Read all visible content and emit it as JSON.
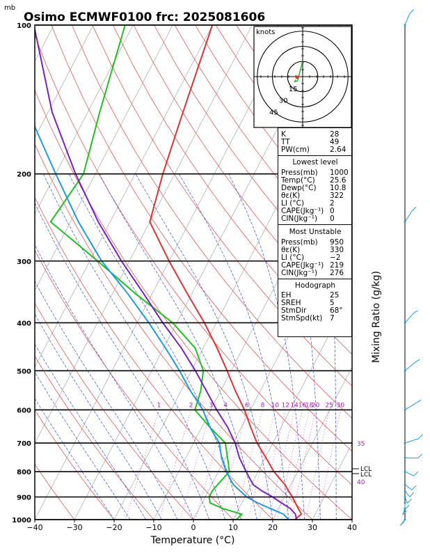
{
  "header": {
    "unit": "mb",
    "title": "Osimo ECMWF0100 frc: 2025081606"
  },
  "axes": {
    "xlabel": "Temperature (°C)",
    "ylabel_right": "Mixing Ratio (g/kg)",
    "x_ticks": [
      "−40",
      "−30",
      "−20",
      "−10",
      "0",
      "10",
      "20",
      "30",
      "40"
    ],
    "y_ticks": [
      "100",
      "200",
      "300",
      "400",
      "500",
      "600",
      "700",
      "800",
      "900",
      "1000"
    ],
    "lcl_labels": [
      "LCL",
      "LCL"
    ]
  },
  "mixing_ratio_labels": [
    "1",
    "2",
    "3",
    "4",
    "6",
    "8",
    "10",
    "12",
    "14",
    "16",
    "18",
    "20",
    "25",
    "30"
  ],
  "adiabat_labels": [
    "35",
    "40"
  ],
  "hodograph": {
    "unit": "knots",
    "rings": [
      "15",
      "30",
      "45"
    ]
  },
  "indices": {
    "general": [
      {
        "label": "K",
        "value": "28"
      },
      {
        "label": "TT",
        "value": "49"
      },
      {
        "label": "PW(cm)",
        "value": "2.64"
      }
    ],
    "lowest_level": {
      "title": "Lowest level",
      "rows": [
        {
          "label": "Press(mb)",
          "value": "1000"
        },
        {
          "label": "Temp(°C)",
          "value": "25.6"
        },
        {
          "label": "Dewp(°C)",
          "value": "10.8"
        },
        {
          "label": "θε(K)",
          "value": "322"
        },
        {
          "label": "LI (°C)",
          "value": "2"
        },
        {
          "label": "CAPE(Jkg⁻¹)",
          "value": "0"
        },
        {
          "label": "CIN(Jkg⁻¹)",
          "value": "0"
        }
      ]
    },
    "most_unstable": {
      "title": "Most Unstable",
      "rows": [
        {
          "label": "Press(mb)",
          "value": "950"
        },
        {
          "label": "θε(K)",
          "value": "330"
        },
        {
          "label": "LI (°C)",
          "value": "−2"
        },
        {
          "label": "CAPE(Jkg⁻¹)",
          "value": "219"
        },
        {
          "label": "CIN(Jkg⁻¹)",
          "value": "276"
        }
      ]
    },
    "hodograph_box": {
      "title": "Hodograph",
      "rows": [
        {
          "label": "EH",
          "value": "25"
        },
        {
          "label": "SREH",
          "value": "5"
        },
        {
          "label": "StmDir",
          "value": "68°"
        },
        {
          "label": "StmSpd(kt)",
          "value": "7"
        }
      ]
    }
  },
  "chart_data": {
    "type": "line",
    "xlim": [
      -40,
      40
    ],
    "ylim": [
      1000,
      100
    ],
    "yscale": "log",
    "isobars": [
      100,
      200,
      300,
      400,
      500,
      600,
      700,
      800,
      900,
      1000
    ],
    "series": [
      {
        "color": "#e03030",
        "p": [
          1000,
          975,
          950,
          925,
          900,
          875,
          850,
          800,
          750,
          700,
          650,
          600,
          550,
          500,
          450,
          400,
          350,
          300,
          250,
          200,
          150,
          100
        ],
        "t": [
          25.6,
          26.5,
          25.0,
          23.5,
          22.0,
          20.2,
          18.5,
          14.0,
          10.2,
          6.0,
          2.3,
          -1.5,
          -6.2,
          -11.0,
          -16.5,
          -23.0,
          -31.0,
          -40.0,
          -50.0,
          -53.0,
          -56.0,
          -60.0
        ]
      },
      {
        "color": "#20c020",
        "p": [
          1000,
          975,
          950,
          925,
          900,
          875,
          850,
          800,
          750,
          700,
          650,
          600,
          550,
          500,
          450,
          400,
          350,
          300,
          250,
          200,
          150,
          100
        ],
        "t": [
          10.8,
          11.5,
          6.0,
          2.0,
          1.0,
          1.0,
          1.5,
          2.8,
          0.5,
          -2.0,
          -8.0,
          -14.0,
          -15.0,
          -17.0,
          -22.0,
          -31.0,
          -44.0,
          -58.0,
          -75.0,
          -73.0,
          -77.0,
          -82.0
        ]
      },
      {
        "color": "#1e9ae0",
        "p": [
          1000,
          975,
          950,
          925,
          900,
          875,
          850,
          800,
          750,
          700,
          650,
          600,
          550,
          500,
          450,
          400,
          350,
          300,
          250,
          200,
          150,
          100
        ],
        "t": [
          24.0,
          22.0,
          18.0,
          14.0,
          10.5,
          8.0,
          5.5,
          2.0,
          -1.0,
          -3.5,
          -8.0,
          -12.0,
          -17.5,
          -23.0,
          -29.5,
          -37.0,
          -46.0,
          -57.0,
          -68.0,
          -80.0,
          -95.0,
          -110.0
        ]
      },
      {
        "color": "#7a1fc0",
        "p": [
          1000,
          975,
          950,
          925,
          900,
          875,
          850,
          800,
          750,
          700,
          650,
          600,
          550,
          500,
          450,
          400,
          350,
          300,
          250,
          200,
          150,
          100
        ],
        "t": [
          26.0,
          25.0,
          23.0,
          20.0,
          17.0,
          13.5,
          10.5,
          7.0,
          3.5,
          0.5,
          -3.5,
          -8.5,
          -13.5,
          -19.0,
          -25.5,
          -33.5,
          -42.0,
          -52.0,
          -63.0,
          -75.0,
          -89.0,
          -105.0
        ]
      }
    ],
    "hodograph_points": [
      [
        -7,
        3
      ],
      [
        -8,
        5
      ],
      [
        -5,
        4
      ],
      [
        -2,
        -8
      ],
      [
        0,
        -15
      ]
    ],
    "wind_barbs": [
      {
        "p": 1000,
        "dir": 200,
        "spd": 10
      },
      {
        "p": 950,
        "dir": 190,
        "spd": 10
      },
      {
        "p": 925,
        "dir": 180,
        "spd": 8
      },
      {
        "p": 900,
        "dir": 170,
        "spd": 8
      },
      {
        "p": 875,
        "dir": 160,
        "spd": 6
      },
      {
        "p": 850,
        "dir": 150,
        "spd": 8
      },
      {
        "p": 800,
        "dir": 140,
        "spd": 6
      },
      {
        "p": 750,
        "dir": 110,
        "spd": 6
      },
      {
        "p": 700,
        "dir": 80,
        "spd": 6
      },
      {
        "p": 600,
        "dir": 60,
        "spd": 5
      },
      {
        "p": 500,
        "dir": 50,
        "spd": 5
      },
      {
        "p": 400,
        "dir": 40,
        "spd": 5
      },
      {
        "p": 250,
        "dir": 30,
        "spd": 6
      },
      {
        "p": 100,
        "dir": 20,
        "spd": 8
      }
    ]
  }
}
